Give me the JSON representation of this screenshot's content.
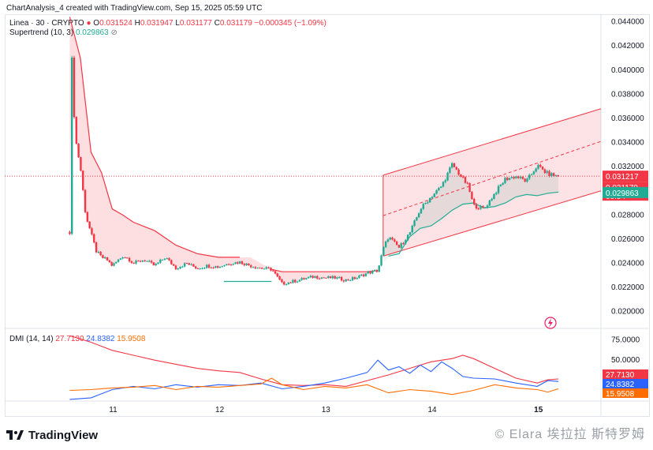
{
  "header": {
    "caption": "ChartAnalysis_4 created with TradingView.com, Sep 15, 2025 05:59 UTC"
  },
  "legend": {
    "symbol": "Linea · 30 · CRYPTO",
    "o_label": "O",
    "o_value": "0.031524",
    "h_label": "H",
    "h_value": "0.031947",
    "l_label": "L",
    "l_value": "0.031177",
    "c_label": "C",
    "c_value": "0.031179",
    "change": "−0.000345 (−1.09%)",
    "supertrend_label": "Supertrend (10, 3)",
    "supertrend_value": "0.029863",
    "dmi_label": "DMI (14, 14)",
    "dmi_adx": "27.7130",
    "dmi_plus": "24.8382",
    "dmi_minus": "15.9508"
  },
  "footer": {
    "brand": "TradingView",
    "watermark": "© Elara 埃拉拉 斯特罗姆"
  },
  "colors": {
    "up": "#22ab94",
    "down": "#f23645",
    "channel": "#f23645",
    "adx": "#f23645",
    "plus": "#2962ff",
    "minus": "#ff6d00"
  },
  "chart_data": [
    {
      "type": "candlestick",
      "title": "Linea · 30 · CRYPTO",
      "x_ticks": [
        "11",
        "12",
        "13",
        "14",
        "15"
      ],
      "y_ticks": [
        "0.044000",
        "0.042000",
        "0.040000",
        "0.038000",
        "0.036000",
        "0.034000",
        "0.032000",
        "0.030000",
        "0.028000",
        "0.026000",
        "0.024000",
        "0.022000",
        "0.020000"
      ],
      "ylim": [
        0.019,
        0.0445
      ],
      "price_labels": {
        "last": "0.031217",
        "close": "0.031179",
        "countdown": "00:54",
        "supertrend": "0.029863"
      },
      "price_path_days": [
        10.6,
        10.62,
        10.65,
        10.7,
        10.75,
        10.8,
        10.85,
        10.9,
        10.95,
        11.0,
        11.05,
        11.1,
        11.15,
        11.2,
        11.3,
        11.4,
        11.5,
        11.6,
        11.7,
        11.8,
        11.9,
        12.0,
        12.1,
        12.2,
        12.3,
        12.4,
        12.5,
        12.6,
        12.7,
        12.8,
        12.9,
        13.0,
        13.1,
        13.2,
        13.3,
        13.4,
        13.5,
        13.55,
        13.6,
        13.7,
        13.8,
        13.9,
        14.0,
        14.1,
        14.2,
        14.3,
        14.35,
        14.4,
        14.5,
        14.6,
        14.7,
        14.8,
        14.9,
        15.0,
        15.1,
        15.2
      ],
      "price_path_values": [
        0.0266,
        0.041,
        0.0345,
        0.032,
        0.028,
        0.0265,
        0.025,
        0.0245,
        0.0243,
        0.0238,
        0.0242,
        0.0246,
        0.0244,
        0.024,
        0.0243,
        0.0238,
        0.0245,
        0.0236,
        0.024,
        0.0236,
        0.0238,
        0.0237,
        0.024,
        0.0241,
        0.0238,
        0.0236,
        0.0235,
        0.0223,
        0.0225,
        0.0227,
        0.0229,
        0.0228,
        0.0228,
        0.0226,
        0.0228,
        0.0232,
        0.0234,
        0.0252,
        0.0262,
        0.0253,
        0.0265,
        0.0285,
        0.0295,
        0.0304,
        0.0322,
        0.031,
        0.0304,
        0.0288,
        0.0285,
        0.0298,
        0.031,
        0.0312,
        0.0308,
        0.0321,
        0.0314,
        0.0312
      ],
      "supertrend": {
        "name": "Supertrend (10, 3)",
        "days": [
          10.6,
          10.7,
          10.8,
          10.9,
          11.0,
          11.1,
          11.2,
          11.4,
          11.6,
          11.8,
          12.0,
          12.2,
          12.3,
          12.5,
          12.6,
          13.0,
          13.2,
          13.4,
          13.5,
          13.6,
          13.7,
          13.8,
          13.9,
          14.0,
          14.1,
          14.2,
          14.3,
          14.4,
          14.5,
          14.6,
          14.7,
          14.8,
          14.9,
          15.0,
          15.1,
          15.2
        ],
        "values": [
          0.0444,
          0.041,
          0.0332,
          0.0315,
          0.0285,
          0.028,
          0.0274,
          0.0267,
          0.0255,
          0.0248,
          0.0245,
          0.0245,
          0.0245,
          0.0235,
          0.0233,
          0.0233,
          0.0233,
          0.0233,
          0.0234,
          0.0246,
          0.0248,
          0.0262,
          0.0269,
          0.0271,
          0.0277,
          0.0284,
          0.0289,
          0.029,
          0.0286,
          0.0287,
          0.029,
          0.0295,
          0.0297,
          0.0296,
          0.0298,
          0.0299
        ]
      },
      "channel": {
        "upper": {
          "x": [
            13.55,
            15.6
          ],
          "y": [
            0.0313,
            0.0368
          ]
        },
        "lower": {
          "x": [
            13.55,
            15.6
          ],
          "y": [
            0.0246,
            0.03
          ]
        },
        "mid": {
          "x": [
            13.55,
            15.6
          ],
          "y": [
            0.02795,
            0.0341
          ]
        }
      },
      "horizontal_level": 0.031217
    },
    {
      "type": "line",
      "title": "DMI (14, 14)",
      "y_ticks": [
        "75.0000",
        "50.0000"
      ],
      "ylim": [
        0,
        85
      ],
      "value_labels": [
        "27.7130",
        "24.8382",
        "15.9508"
      ],
      "series": [
        {
          "name": "ADX",
          "days": [
            10.6,
            10.8,
            11.0,
            11.2,
            11.4,
            11.6,
            11.8,
            12.0,
            12.2,
            12.4,
            12.6,
            12.8,
            13.0,
            13.2,
            13.4,
            13.6,
            13.8,
            14.0,
            14.2,
            14.3,
            14.4,
            14.6,
            14.8,
            15.0,
            15.1,
            15.2
          ],
          "values": [
            80,
            72,
            62,
            56,
            50,
            45,
            40,
            37,
            35,
            27,
            20,
            19,
            20,
            18,
            25,
            32,
            40,
            48,
            52,
            56,
            52,
            40,
            28,
            22,
            26,
            27
          ]
        },
        {
          "name": "+DI",
          "days": [
            10.6,
            10.8,
            11.0,
            11.2,
            11.4,
            11.6,
            11.8,
            12.0,
            12.2,
            12.4,
            12.6,
            12.8,
            13.0,
            13.2,
            13.4,
            13.5,
            13.6,
            13.7,
            13.8,
            13.9,
            14.0,
            14.1,
            14.2,
            14.3,
            14.4,
            14.6,
            14.8,
            15.0,
            15.1,
            15.2
          ],
          "values": [
            2,
            4,
            14,
            18,
            15,
            20,
            17,
            20,
            19,
            22,
            15,
            18,
            22,
            28,
            35,
            50,
            38,
            42,
            34,
            44,
            36,
            48,
            40,
            30,
            28,
            27,
            22,
            18,
            25,
            24
          ]
        },
        {
          "name": "-DI",
          "days": [
            10.6,
            10.8,
            11.0,
            11.2,
            11.4,
            11.6,
            11.8,
            12.0,
            12.2,
            12.4,
            12.5,
            12.6,
            12.8,
            13.0,
            13.2,
            13.4,
            13.6,
            13.8,
            14.0,
            14.2,
            14.4,
            14.6,
            14.8,
            15.0,
            15.1,
            15.2
          ],
          "values": [
            13,
            14,
            16,
            17,
            19,
            14,
            18,
            17,
            19,
            21,
            28,
            20,
            14,
            18,
            16,
            20,
            10,
            14,
            12,
            8,
            13,
            20,
            16,
            14,
            11,
            15
          ]
        }
      ]
    }
  ]
}
